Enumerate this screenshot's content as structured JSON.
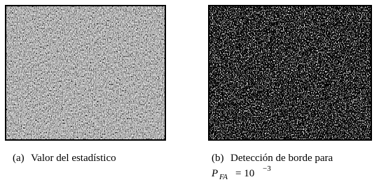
{
  "figures": [
    {
      "label": "(a)",
      "caption": "Valor del estadístico"
    },
    {
      "label": "(b)",
      "caption": "Detección de borde para",
      "math": {
        "base": "P",
        "subscript": "FA",
        "relation": "= 10",
        "exponent": "−3"
      }
    }
  ]
}
